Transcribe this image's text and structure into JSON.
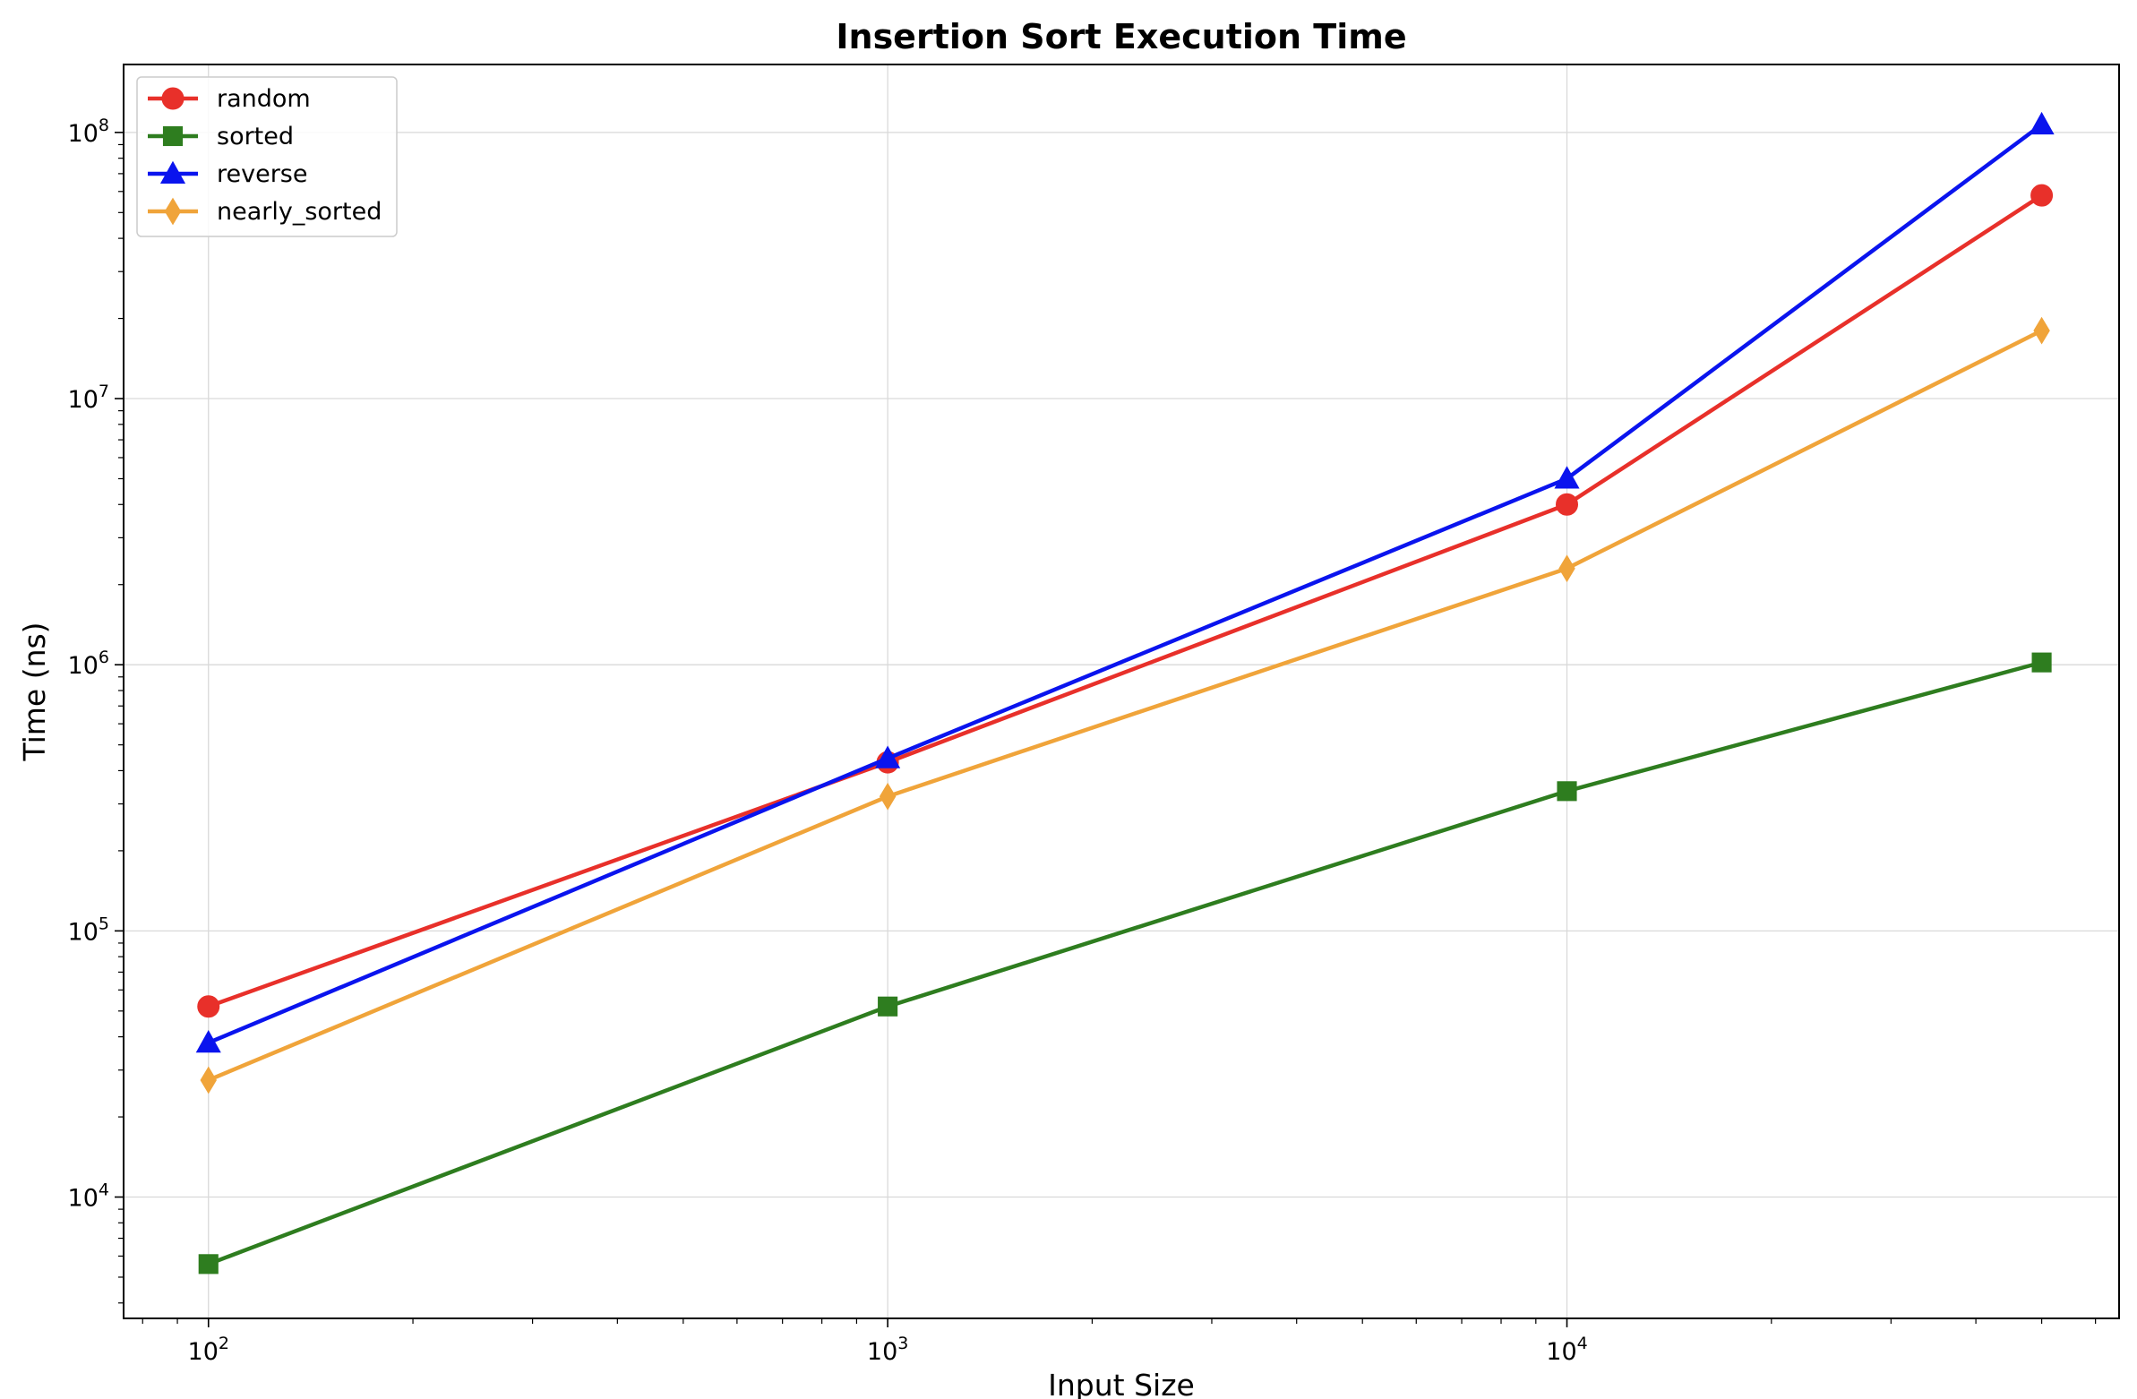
{
  "chart_data": {
    "type": "line",
    "title": "Insertion Sort Execution Time",
    "xlabel": "Input Size",
    "ylabel": "Time (ns)",
    "xscale": "log",
    "yscale": "log",
    "xlim": [
      75,
      65000
    ],
    "ylim": [
      3500,
      180000000
    ],
    "x": [
      100,
      1000,
      10000,
      50000
    ],
    "x_ticks": [
      {
        "base": "10",
        "exp": "2",
        "value": 100
      },
      {
        "base": "10",
        "exp": "3",
        "value": 1000
      },
      {
        "base": "10",
        "exp": "4",
        "value": 10000
      }
    ],
    "y_ticks": [
      {
        "base": "10",
        "exp": "4",
        "value": 10000
      },
      {
        "base": "10",
        "exp": "5",
        "value": 100000
      },
      {
        "base": "10",
        "exp": "6",
        "value": 1000000
      },
      {
        "base": "10",
        "exp": "7",
        "value": 10000000
      },
      {
        "base": "10",
        "exp": "8",
        "value": 100000000
      }
    ],
    "grid": true,
    "legend_position": "top-left",
    "series": [
      {
        "name": "random",
        "color": "#e8302a",
        "marker": "circle",
        "values": [
          52000,
          430000,
          4000000,
          58000000
        ]
      },
      {
        "name": "sorted",
        "color": "#2e7d1f",
        "marker": "square",
        "values": [
          5600,
          52000,
          335000,
          1020000
        ]
      },
      {
        "name": "reverse",
        "color": "#0a14ee",
        "marker": "triangle",
        "values": [
          38000,
          445000,
          5000000,
          107000000
        ]
      },
      {
        "name": "nearly_sorted",
        "color": "#f0a43a",
        "marker": "diamond",
        "values": [
          27500,
          320000,
          2300000,
          18000000
        ]
      }
    ]
  }
}
